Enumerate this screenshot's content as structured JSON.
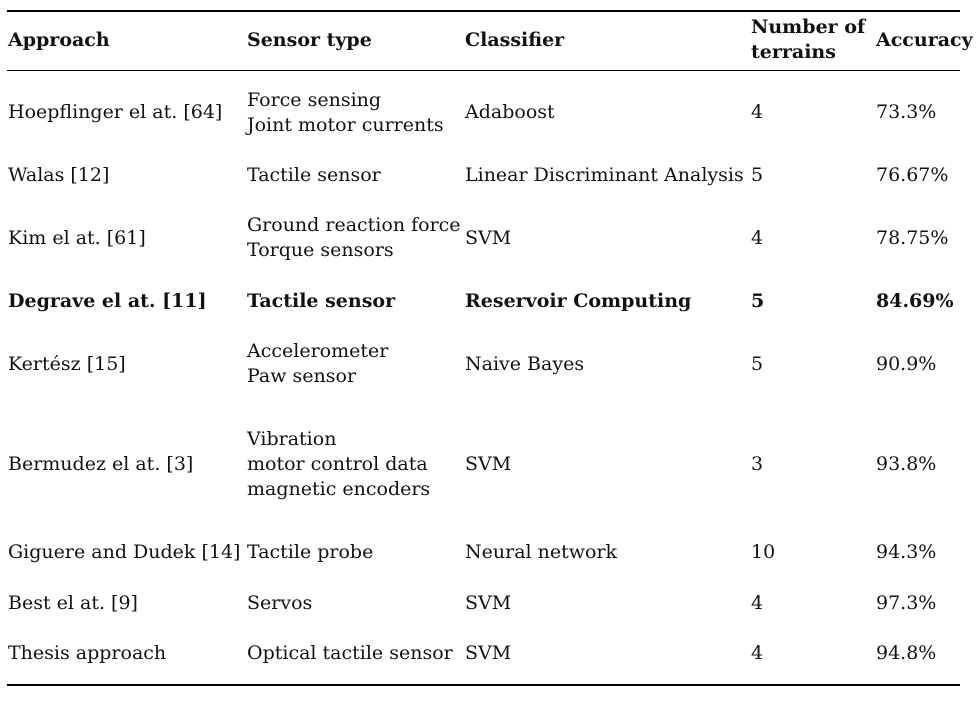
{
  "table": {
    "headers": {
      "approach": "Approach",
      "sensor_type": "Sensor type",
      "classifier": "Classifier",
      "terrains": [
        "Number of",
        "terrains"
      ],
      "accuracy": "Accuracy"
    },
    "rows": [
      {
        "approach": "Hoepflinger el at. [64]",
        "sensor": [
          "Force sensing",
          "Joint motor currents"
        ],
        "classifier": "Adaboost",
        "terrains": "4",
        "accuracy": "73.3%",
        "bold": false
      },
      {
        "approach": "Walas [12]",
        "sensor": [
          "Tactile sensor"
        ],
        "classifier": "Linear Discriminant Analysis",
        "terrains": "5",
        "accuracy": "76.67%",
        "bold": false
      },
      {
        "approach": "Kim el at. [61]",
        "sensor": [
          "Ground reaction force",
          "Torque sensors"
        ],
        "classifier": "SVM",
        "terrains": "4",
        "accuracy": "78.75%",
        "bold": false
      },
      {
        "approach": "Degrave el at. [11]",
        "sensor": [
          "Tactile sensor"
        ],
        "classifier": "Reservoir Computing",
        "terrains": "5",
        "accuracy": "84.69%",
        "bold": true
      },
      {
        "approach": "Kertész [15]",
        "sensor": [
          "Accelerometer",
          "Paw sensor"
        ],
        "classifier": "Naive Bayes",
        "terrains": "5",
        "accuracy": "90.9%",
        "bold": false
      },
      {
        "approach": "Bermudez el at. [3]",
        "sensor": [
          "Vibration",
          "motor control data",
          "magnetic encoders"
        ],
        "classifier": "SVM",
        "terrains": "3",
        "accuracy": "93.8%",
        "bold": false
      },
      {
        "approach": "Giguere and Dudek [14]",
        "sensor": [
          "Tactile probe"
        ],
        "classifier": "Neural network",
        "terrains": "10",
        "accuracy": "94.3%",
        "bold": false
      },
      {
        "approach": "Best el at. [9]",
        "sensor": [
          "Servos"
        ],
        "classifier": "SVM",
        "terrains": "4",
        "accuracy": "97.3%",
        "bold": false
      },
      {
        "approach": "Thesis approach",
        "sensor": [
          "Optical tactile sensor"
        ],
        "classifier": "SVM",
        "terrains": "4",
        "accuracy": "94.8%",
        "bold": false
      }
    ]
  }
}
